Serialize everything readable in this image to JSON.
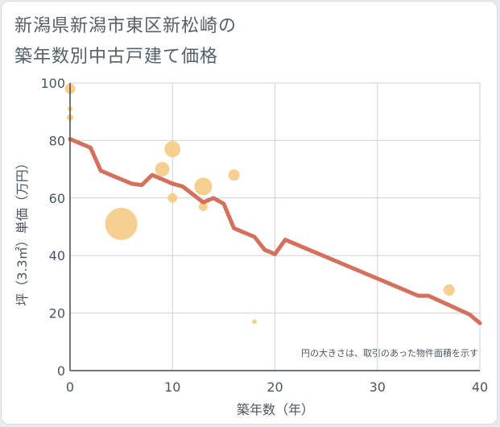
{
  "title": {
    "line1": "新潟県新潟市東区新松崎の",
    "line2": "築年数別中古戸建て価格"
  },
  "note": "円の大きさは、取引のあった物件面積を示す",
  "colors": {
    "bubble": "#f5c77e",
    "line": "#d4705e",
    "grid": "#c9d3dc",
    "axis": "#3f4a55"
  },
  "chart_data": {
    "type": "scatter",
    "title": "新潟県新潟市東区新松崎の築年数別中古戸建て価格",
    "xlabel": "築年数（年）",
    "ylabel": "坪（3.3㎡）単価（万円）",
    "xlim": [
      0,
      40
    ],
    "ylim": [
      0,
      100
    ],
    "xticks": [
      0,
      10,
      20,
      30,
      40
    ],
    "yticks": [
      0,
      20,
      40,
      60,
      80,
      100
    ],
    "grid": true,
    "bubbles": [
      {
        "x": 0,
        "y": 98,
        "size": 1.3
      },
      {
        "x": 0,
        "y": 91,
        "size": 0.6
      },
      {
        "x": 0,
        "y": 88,
        "size": 0.8
      },
      {
        "x": 5,
        "y": 51,
        "size": 4.0
      },
      {
        "x": 9,
        "y": 70,
        "size": 1.8
      },
      {
        "x": 10,
        "y": 77,
        "size": 2.0
      },
      {
        "x": 10,
        "y": 60,
        "size": 1.2
      },
      {
        "x": 13,
        "y": 64,
        "size": 2.2
      },
      {
        "x": 13,
        "y": 57,
        "size": 1.1
      },
      {
        "x": 16,
        "y": 68,
        "size": 1.4
      },
      {
        "x": 18,
        "y": 17,
        "size": 0.6
      },
      {
        "x": 37,
        "y": 28,
        "size": 1.4
      }
    ],
    "trend": {
      "x": [
        0,
        2,
        3,
        6,
        7,
        8,
        10,
        11,
        13,
        14,
        15,
        16,
        18,
        19,
        20,
        21,
        34,
        35,
        39,
        40
      ],
      "y": [
        80.5,
        77.5,
        69.5,
        65,
        64.5,
        68,
        65,
        64,
        58.5,
        60,
        58,
        49.5,
        46.5,
        42,
        40.5,
        45.5,
        26,
        26,
        19.5,
        16.5
      ]
    }
  }
}
